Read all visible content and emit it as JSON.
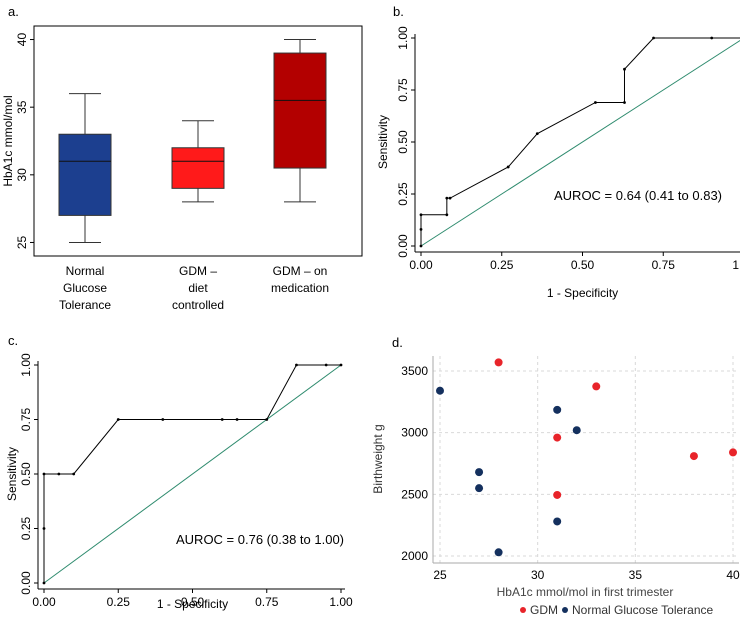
{
  "colors": {
    "normal_blue": "#1c3f8f",
    "gdm_diet_red": "#ff1a1a",
    "gdm_med_darkred": "#b30000",
    "roc_line": "#000000",
    "diag_line": "#2e8b6e",
    "scatter_gdm": "#e8242a",
    "scatter_normal": "#14305e",
    "grid": "#d9d9d9"
  },
  "chart_data": [
    {
      "panel": "a.",
      "type": "box",
      "title": "",
      "ylabel": "HbA1c mmol/mol",
      "ylim": [
        24,
        41
      ],
      "yticks": [
        "25",
        "30",
        "35",
        "40"
      ],
      "ytick_values": [
        25,
        30,
        35,
        40
      ],
      "categories": [
        {
          "label_lines": [
            "Normal",
            "Glucose",
            "Tolerance"
          ],
          "min": 25,
          "q1": 27,
          "median": 31,
          "q3": 33,
          "max": 36,
          "color_key": "normal_blue"
        },
        {
          "label_lines": [
            "GDM –",
            "diet",
            "controlled"
          ],
          "min": 28,
          "q1": 29,
          "median": 31,
          "q3": 32,
          "max": 34,
          "color_key": "gdm_diet_red"
        },
        {
          "label_lines": [
            "GDM – on",
            "medication"
          ],
          "min": 28,
          "q1": 30.5,
          "median": 35.5,
          "q3": 39,
          "max": 40,
          "color_key": "gdm_med_darkred"
        }
      ]
    },
    {
      "panel": "b.",
      "type": "line",
      "xlabel": "1 - Specificity",
      "ylabel": "Sensitivity",
      "xlim": [
        0,
        1
      ],
      "ylim": [
        0,
        1
      ],
      "xticks": [
        "0.00",
        "0.25",
        "0.50",
        "0.75",
        "1.00"
      ],
      "yticks": [
        "0.00",
        "0.25",
        "0.50",
        "0.75",
        "1.00"
      ],
      "tick_values": [
        0,
        0.25,
        0.5,
        0.75,
        1
      ],
      "annotation": "AUROC = 0.64 (0.41 to 0.83)",
      "roc_points": [
        [
          0,
          0
        ],
        [
          0,
          0.08
        ],
        [
          0,
          0.15
        ],
        [
          0.08,
          0.15
        ],
        [
          0.08,
          0.23
        ],
        [
          0.09,
          0.23
        ],
        [
          0.27,
          0.38
        ],
        [
          0.36,
          0.54
        ],
        [
          0.54,
          0.69
        ],
        [
          0.63,
          0.69
        ],
        [
          0.63,
          0.85
        ],
        [
          0.72,
          1.0
        ],
        [
          0.9,
          1.0
        ],
        [
          1.0,
          1.0
        ]
      ],
      "diagonal": [
        [
          0,
          0
        ],
        [
          1,
          1
        ]
      ]
    },
    {
      "panel": "c.",
      "type": "line",
      "xlabel": "1 - Specificity",
      "ylabel": "Sensitivity",
      "xlim": [
        0,
        1
      ],
      "ylim": [
        0,
        1
      ],
      "xticks": [
        "0.00",
        "0.25",
        "0.50",
        "0.75",
        "1.00"
      ],
      "yticks": [
        "0.00",
        "0.25",
        "0.50",
        "0.75",
        "1.00"
      ],
      "tick_values": [
        0,
        0.25,
        0.5,
        0.75,
        1
      ],
      "annotation": "AUROC = 0.76 (0.38 to 1.00)",
      "roc_points": [
        [
          0,
          0
        ],
        [
          0,
          0.25
        ],
        [
          0,
          0.5
        ],
        [
          0.05,
          0.5
        ],
        [
          0.1,
          0.5
        ],
        [
          0.25,
          0.75
        ],
        [
          0.4,
          0.75
        ],
        [
          0.6,
          0.75
        ],
        [
          0.65,
          0.75
        ],
        [
          0.75,
          0.75
        ],
        [
          0.85,
          1.0
        ],
        [
          0.95,
          1.0
        ],
        [
          1.0,
          1.0
        ]
      ],
      "diagonal": [
        [
          0,
          0
        ],
        [
          1,
          1
        ]
      ]
    },
    {
      "panel": "d.",
      "type": "scatter",
      "xlabel": "HbA1c mmol/mol in first trimester",
      "ylabel": "Birthweight g",
      "xlim": [
        24.8,
        40.2
      ],
      "ylim": [
        1950,
        3650
      ],
      "xticks": [
        "25",
        "30",
        "35",
        "40"
      ],
      "xtick_values": [
        25,
        30,
        35,
        40
      ],
      "yticks": [
        "2000",
        "2500",
        "3000",
        "3500"
      ],
      "ytick_values": [
        2000,
        2500,
        3000,
        3500
      ],
      "grid": true,
      "legend": [
        {
          "label": "GDM",
          "color_key": "scatter_gdm"
        },
        {
          "label": "Normal Glucose Tolerance",
          "color_key": "scatter_normal"
        }
      ],
      "series": [
        {
          "name": "GDM",
          "color_key": "scatter_gdm",
          "points": [
            [
              28,
              3570
            ],
            [
              33,
              3375
            ],
            [
              31,
              2960
            ],
            [
              31,
              2495
            ],
            [
              38,
              2810
            ],
            [
              40,
              2840
            ]
          ]
        },
        {
          "name": "Normal Glucose Tolerance",
          "color_key": "scatter_normal",
          "points": [
            [
              25,
              3340
            ],
            [
              31,
              3185
            ],
            [
              32,
              3020
            ],
            [
              27,
              2680
            ],
            [
              27,
              2550
            ],
            [
              31,
              2280
            ],
            [
              28,
              2030
            ]
          ]
        }
      ]
    }
  ]
}
